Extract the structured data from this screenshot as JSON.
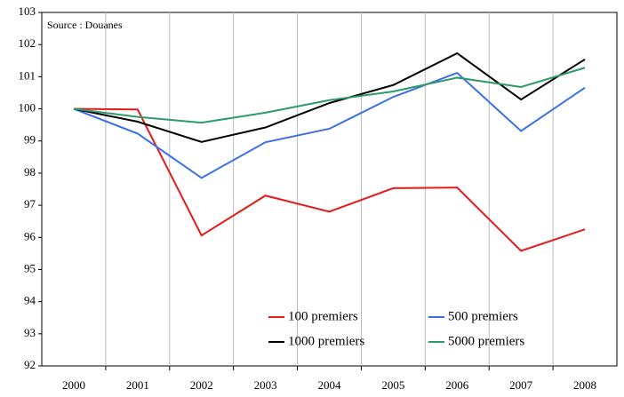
{
  "chart_data": {
    "type": "line",
    "annotation": "Source : Douanes",
    "categories": [
      "2000",
      "2001",
      "2002",
      "2003",
      "2004",
      "2005",
      "2006",
      "2007",
      "2008"
    ],
    "series": [
      {
        "name": "100 premiers",
        "color": "#e41a1c",
        "values": [
          100,
          99.98,
          96.06,
          97.3,
          96.8,
          97.53,
          97.55,
          95.58,
          96.25
        ]
      },
      {
        "name": "500 premiers",
        "color": "#3b6fe8",
        "values": [
          100,
          99.23,
          97.85,
          98.96,
          99.38,
          100.37,
          101.12,
          99.31,
          100.66
        ]
      },
      {
        "name": "1000 premiers",
        "color": "#000000",
        "values": [
          100,
          99.6,
          98.97,
          99.42,
          100.18,
          100.74,
          101.73,
          100.29,
          101.54
        ]
      },
      {
        "name": "5000 premiers",
        "color": "#2e9a6a",
        "values": [
          100,
          99.75,
          99.57,
          99.88,
          100.27,
          100.54,
          100.97,
          100.68,
          101.28
        ]
      }
    ],
    "ylim": [
      92,
      103
    ],
    "yticks": [
      92,
      93,
      94,
      95,
      96,
      97,
      98,
      99,
      100,
      101,
      102,
      103
    ],
    "grid": true
  }
}
